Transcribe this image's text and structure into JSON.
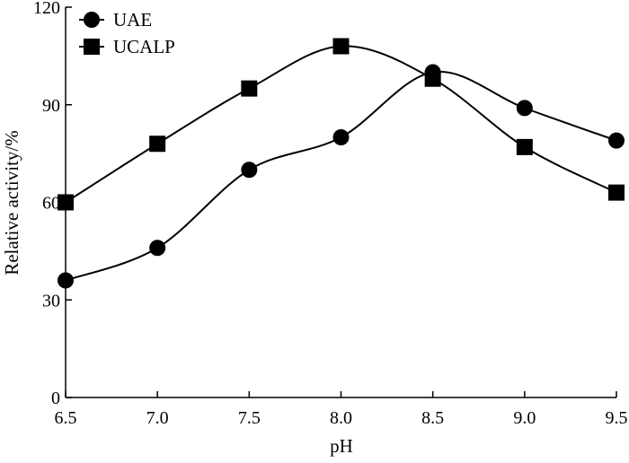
{
  "chart_data": {
    "type": "line",
    "x": [
      6.5,
      7.0,
      7.5,
      8.0,
      8.5,
      9.0,
      9.5
    ],
    "x_tick_labels": [
      "6.5",
      "7.0",
      "7.5",
      "8.0",
      "8.5",
      "9.0",
      "9.5"
    ],
    "y_ticks": [
      0,
      30,
      60,
      90,
      120
    ],
    "y_tick_labels": [
      "0",
      "30",
      "60",
      "90",
      "120"
    ],
    "xlabel": "pH",
    "ylabel": "Relative activity/%",
    "xlim": [
      6.5,
      9.5
    ],
    "ylim": [
      0,
      120
    ],
    "grid": false,
    "legend_position": "top-left",
    "series": [
      {
        "name": "UAE",
        "marker": "circle",
        "values": [
          36,
          46,
          70,
          80,
          100,
          89,
          79
        ]
      },
      {
        "name": "UCALP",
        "marker": "square",
        "values": [
          60,
          78,
          95,
          108,
          98,
          77,
          63
        ]
      }
    ],
    "line_color": "#000000"
  }
}
